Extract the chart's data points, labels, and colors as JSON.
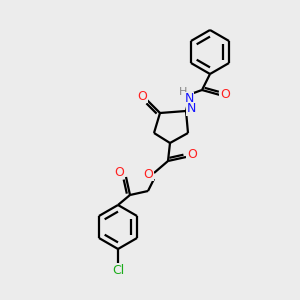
{
  "bg_color": "#ececec",
  "atom_colors": {
    "C": "#000000",
    "N": "#1414ff",
    "O": "#ff2020",
    "Cl": "#1aac1a",
    "H": "#888888"
  },
  "bond_color": "#000000",
  "bond_width": 1.6,
  "figsize": [
    3.0,
    3.0
  ],
  "dpi": 100,
  "font_size": 9
}
